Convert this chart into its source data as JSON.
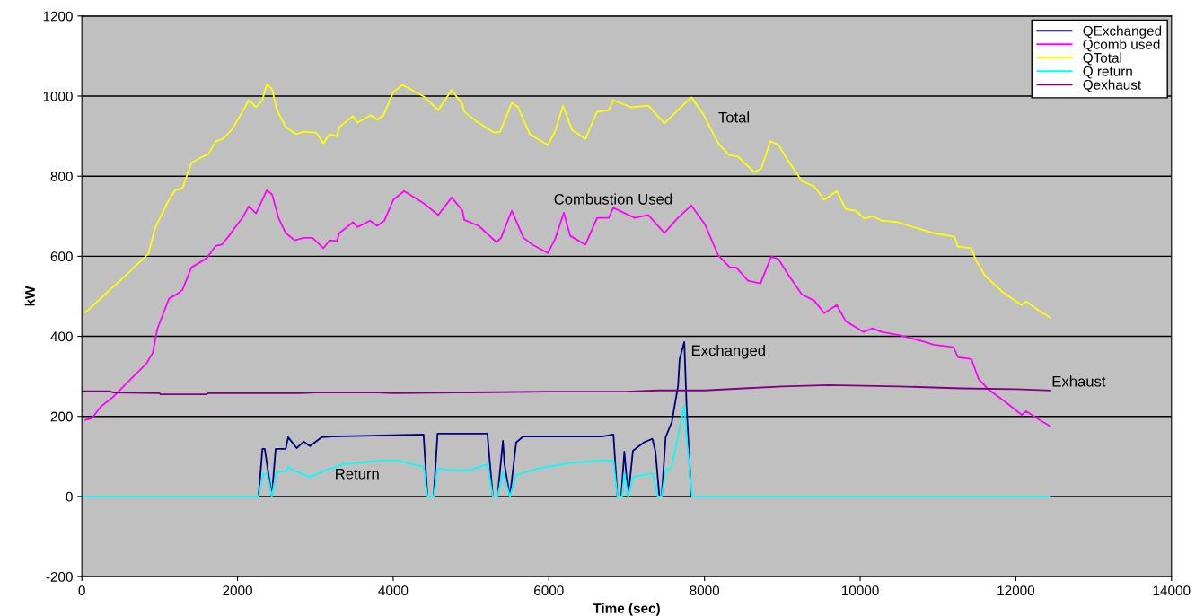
{
  "chart_data": {
    "type": "line",
    "xlabel": "Time (sec)",
    "ylabel": "kW",
    "xlim": [
      0,
      14000
    ],
    "xticks": [
      0,
      2000,
      4000,
      6000,
      8000,
      10000,
      12000,
      14000
    ],
    "ylim": [
      -200,
      1200
    ],
    "yticks": [
      -200,
      0,
      200,
      400,
      600,
      800,
      1000,
      1200
    ],
    "grid": "y",
    "legend": "top right",
    "marker": "none",
    "line_style": "solid",
    "series": [
      {
        "name": "QExchanged",
        "color": "#000080",
        "x": [
          0,
          2270,
          2320,
          2350,
          2440,
          2490,
          2620,
          2650,
          2760,
          2850,
          2930,
          3080,
          3220,
          4390,
          4440,
          4520,
          4570,
          5210,
          5280,
          5340,
          5410,
          5430,
          5500,
          5580,
          5670,
          6680,
          6830,
          6880,
          6930,
          6970,
          7020,
          7080,
          7220,
          7330,
          7370,
          7420,
          7450,
          7500,
          7580,
          7660,
          7680,
          7740,
          7770,
          7830,
          12440
        ],
        "values": [
          0,
          0,
          119,
          119,
          0,
          119,
          119,
          148,
          121,
          137,
          126,
          148,
          150,
          155,
          0,
          0,
          157,
          157,
          0,
          0,
          139,
          81,
          0,
          135,
          150,
          150,
          155,
          0,
          0,
          112,
          0,
          114,
          135,
          144,
          112,
          0,
          0,
          148,
          186,
          276,
          343,
          386,
          224,
          0,
          0
        ]
      },
      {
        "name": "Qcomb used",
        "color": "#ff00ff",
        "x": [
          46,
          127,
          242,
          392,
          623,
          830,
          911,
          969,
          1119,
          1234,
          1292,
          1407,
          1603,
          1719,
          1799,
          1891,
          1972,
          2064,
          2145,
          2237,
          2376,
          2445,
          2526,
          2618,
          2733,
          2849,
          2964,
          3102,
          3183,
          3275,
          3310,
          3483,
          3541,
          3702,
          3794,
          3887,
          4002,
          4140,
          4394,
          4579,
          4752,
          4890,
          4913,
          5098,
          5328,
          5386,
          5524,
          5674,
          5790,
          5986,
          6078,
          6193,
          6274,
          6470,
          6620,
          6770,
          6827,
          7104,
          7277,
          7485,
          7658,
          7831,
          8004,
          8177,
          8327,
          8408,
          8558,
          8719,
          8857,
          8950,
          9065,
          9249,
          9411,
          9538,
          9699,
          9814,
          10045,
          10160,
          10276,
          10483,
          10795,
          10945,
          11199,
          11256,
          11429,
          11521,
          11637,
          11868,
          12075,
          12133,
          12306,
          12444
        ],
        "values": [
          191,
          195,
          224,
          247,
          292,
          332,
          359,
          418,
          494,
          507,
          516,
          572,
          595,
          626,
          629,
          651,
          673,
          696,
          725,
          707,
          765,
          754,
          696,
          658,
          640,
          646,
          646,
          620,
          640,
          638,
          658,
          685,
          673,
          689,
          676,
          689,
          741,
          763,
          732,
          703,
          747,
          714,
          691,
          676,
          635,
          646,
          714,
          646,
          629,
          608,
          642,
          709,
          651,
          629,
          696,
          696,
          721,
          696,
          703,
          658,
          696,
          727,
          680,
          602,
          572,
          572,
          539,
          532,
          599,
          593,
          557,
          505,
          489,
          458,
          478,
          438,
          411,
          420,
          411,
          404,
          388,
          379,
          373,
          348,
          343,
          294,
          269,
          236,
          204,
          213,
          191,
          175
        ]
      },
      {
        "name": "QTotal",
        "color": "#ffff00",
        "x": [
          46,
          277,
          623,
          854,
          946,
          1119,
          1199,
          1292,
          1407,
          1545,
          1626,
          1719,
          1811,
          1926,
          2064,
          2145,
          2237,
          2318,
          2376,
          2445,
          2503,
          2618,
          2756,
          2849,
          3010,
          3102,
          3183,
          3275,
          3310,
          3483,
          3541,
          3714,
          3794,
          3875,
          4002,
          4117,
          4394,
          4579,
          4752,
          4890,
          4913,
          5063,
          5294,
          5374,
          5524,
          5605,
          5755,
          5986,
          6078,
          6182,
          6297,
          6470,
          6620,
          6770,
          6827,
          7058,
          7277,
          7485,
          7658,
          7831,
          7981,
          8177,
          8315,
          8431,
          8638,
          8730,
          8846,
          8950,
          9065,
          9249,
          9411,
          9538,
          9699,
          9814,
          9941,
          10057,
          10160,
          10276,
          10483,
          10714,
          10945,
          11210,
          11256,
          11429,
          11487,
          11602,
          11833,
          12075,
          12133,
          12329,
          12444
        ],
        "values": [
          460,
          501,
          563,
          606,
          673,
          741,
          765,
          770,
          833,
          848,
          855,
          887,
          893,
          916,
          961,
          990,
          972,
          990,
          1030,
          1017,
          967,
          923,
          905,
          911,
          909,
          882,
          905,
          900,
          923,
          950,
          934,
          952,
          941,
          952,
          1010,
          1028,
          999,
          965,
          1015,
          979,
          961,
          938,
          909,
          911,
          983,
          972,
          905,
          878,
          911,
          976,
          916,
          893,
          961,
          965,
          990,
          972,
          976,
          932,
          965,
          997,
          956,
          882,
          853,
          849,
          810,
          819,
          887,
          878,
          842,
          788,
          774,
          741,
          763,
          718,
          714,
          694,
          700,
          689,
          685,
          671,
          658,
          649,
          624,
          620,
          590,
          552,
          510,
          478,
          487,
          460,
          447
        ]
      },
      {
        "name": "Q return",
        "color": "#00ffff",
        "x": [
          0,
          2270,
          2330,
          2380,
          2440,
          2500,
          2620,
          2650,
          2720,
          2930,
          3100,
          3360,
          3870,
          4060,
          4390,
          4440,
          4520,
          4570,
          4680,
          4980,
          5210,
          5280,
          5340,
          5410,
          5500,
          5580,
          5870,
          6250,
          6680,
          6830,
          6880,
          6940,
          6970,
          7020,
          7080,
          7330,
          7400,
          7450,
          7500,
          7570,
          7620,
          7680,
          7740,
          7770,
          7840,
          12440
        ],
        "values": [
          0,
          0,
          56,
          58,
          0,
          61,
          63,
          74,
          65,
          49,
          63,
          81,
          90,
          90,
          74,
          0,
          0,
          70,
          67,
          65,
          81,
          0,
          0,
          63,
          0,
          54,
          70,
          83,
          90,
          90,
          0,
          0,
          58,
          0,
          49,
          58,
          0,
          0,
          67,
          70,
          112,
          171,
          227,
          148,
          0,
          0
        ]
      },
      {
        "name": "Qexhaust",
        "color": "#800080",
        "x": [
          0,
          350,
          400,
          1000,
          1010,
          1600,
          1620,
          2800,
          3000,
          3800,
          4000,
          5000,
          6000,
          7000,
          7400,
          8000,
          8500,
          9000,
          9600,
          10500,
          11300,
          12000,
          12444
        ],
        "values": [
          263,
          263,
          260,
          258,
          255,
          255,
          258,
          258,
          260,
          260,
          258,
          260,
          262,
          262,
          265,
          265,
          270,
          275,
          278,
          275,
          270,
          268,
          265
        ]
      }
    ],
    "annotations": [
      "Total",
      "Combustion Used",
      "Exchanged",
      "Exhaust",
      "Return"
    ]
  }
}
